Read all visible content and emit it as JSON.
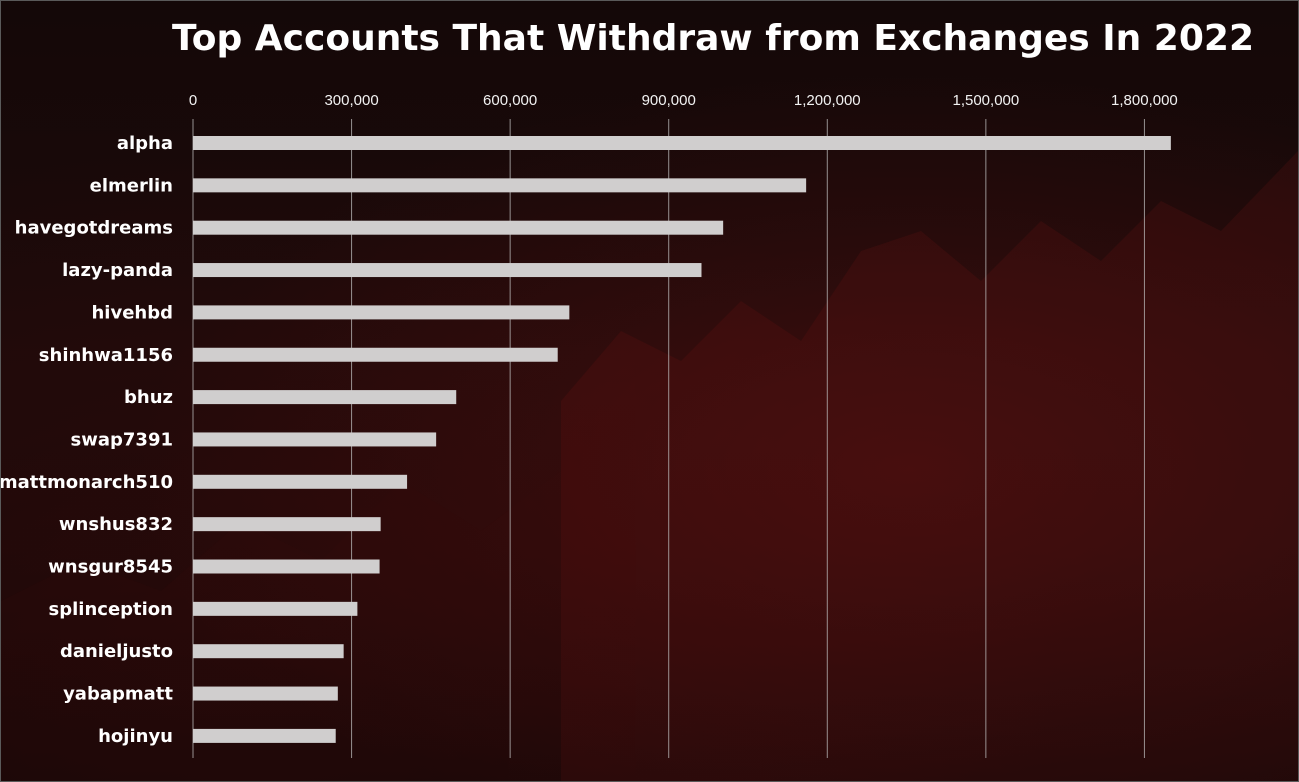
{
  "chart_data": {
    "type": "bar",
    "orientation": "horizontal",
    "title": "Top Accounts That Withdraw from Exchanges In 2022",
    "categories": [
      "alpha",
      "elmerlin",
      "havegotdreams",
      "lazy-panda",
      "hivehbd",
      "shinhwa1156",
      "bhuz",
      "swap7391",
      "mattmonarch510",
      "wnshus832",
      "wnsgur8545",
      "splinception",
      "danieljusto",
      "yabapmatt",
      "hojinyu"
    ],
    "values": [
      1850000,
      1160000,
      1003000,
      962000,
      712000,
      690000,
      498000,
      460000,
      405000,
      355000,
      353000,
      311000,
      285000,
      274000,
      270000
    ],
    "xlim": [
      0,
      2100000
    ],
    "xticks": [
      0,
      300000,
      600000,
      900000,
      1200000,
      1500000,
      1800000
    ],
    "xtick_labels": [
      "0",
      "300,000",
      "600,000",
      "900,000",
      "1,200,000",
      "1,500,000",
      "1,800,000"
    ],
    "axis_position": "top",
    "grid": true,
    "bar_color": "#d0cece"
  }
}
